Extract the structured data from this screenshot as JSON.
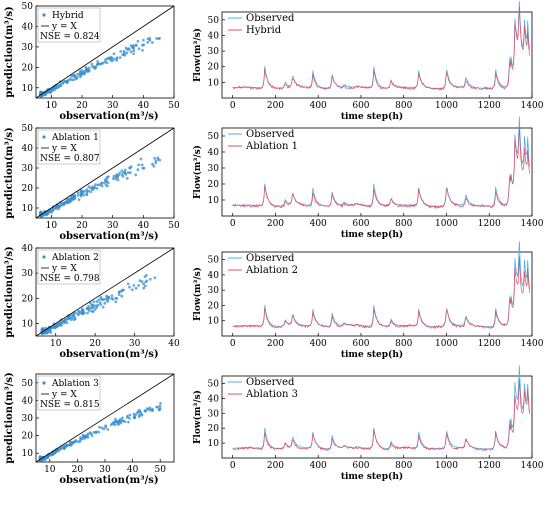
{
  "colors": {
    "scatter": "#3a8fd0",
    "observed": "#4fb3e8",
    "model": "#e0506a",
    "diagonal": "#000000"
  },
  "chart_data": [
    {
      "type": "scatter",
      "panel": "scatter-1",
      "legend": [
        "Hybrid",
        "y = X"
      ],
      "nse_label": "NSE = 0.824",
      "xlabel": "observation(m³/s)",
      "ylabel": "prediction(m³/s)",
      "xlim": [
        5,
        50
      ],
      "ylim": [
        5,
        50
      ],
      "xticks": [
        "10",
        "20",
        "30",
        "40",
        "50"
      ],
      "yticks": [
        "10",
        "20",
        "30",
        "40",
        "50"
      ],
      "reference_line": "y = X",
      "nse": 0.824,
      "spread": 0.22
    },
    {
      "type": "line",
      "panel": "flow-1",
      "series": [
        {
          "name": "Observed"
        },
        {
          "name": "Hybrid"
        }
      ],
      "xlabel": "time step(h)",
      "ylabel": "Flow(m³/s)",
      "xlim": [
        -50,
        1400
      ],
      "ylim": [
        0,
        55
      ],
      "xticks": [
        "0",
        "200",
        "400",
        "600",
        "800",
        "1000",
        "1200",
        "1400"
      ],
      "yticks": [
        "10",
        "20",
        "30",
        "40",
        "50"
      ]
    },
    {
      "type": "scatter",
      "panel": "scatter-2",
      "legend": [
        "Ablation 1",
        "y = X"
      ],
      "nse_label": "NSE = 0.807",
      "xlabel": "observation(m³/s)",
      "ylabel": "prediction(m³/s)",
      "xlim": [
        5,
        50
      ],
      "ylim": [
        5,
        50
      ],
      "xticks": [
        "10",
        "20",
        "30",
        "40",
        "50"
      ],
      "yticks": [
        "10",
        "20",
        "30",
        "40",
        "50"
      ],
      "reference_line": "y = X",
      "nse": 0.807,
      "spread": 0.25
    },
    {
      "type": "line",
      "panel": "flow-2",
      "series": [
        {
          "name": "Observed"
        },
        {
          "name": "Ablation 1"
        }
      ],
      "xlabel": "time step(h)",
      "ylabel": "Flow(m³/s)",
      "xlim": [
        -50,
        1400
      ],
      "ylim": [
        0,
        55
      ],
      "xticks": [
        "0",
        "200",
        "400",
        "600",
        "800",
        "1000",
        "1200",
        "1400"
      ],
      "yticks": [
        "10",
        "20",
        "30",
        "40",
        "50"
      ]
    },
    {
      "type": "scatter",
      "panel": "scatter-3",
      "legend": [
        "Ablation 2",
        "y = X"
      ],
      "nse_label": "NSE = 0.798",
      "xlabel": "observation(m³/s)",
      "ylabel": "prediction(m³/s)",
      "xlim": [
        5,
        40
      ],
      "ylim": [
        5,
        40
      ],
      "xticks": [
        "10",
        "20",
        "30",
        "40"
      ],
      "yticks": [
        "10",
        "20",
        "30",
        "40"
      ],
      "reference_line": "y = X",
      "nse": 0.798,
      "spread": 0.28
    },
    {
      "type": "line",
      "panel": "flow-3",
      "series": [
        {
          "name": "Observed"
        },
        {
          "name": "Ablation 2"
        }
      ],
      "xlabel": "time step(h)",
      "ylabel": "Flow(m³/s)",
      "xlim": [
        -50,
        1400
      ],
      "ylim": [
        0,
        55
      ],
      "xticks": [
        "0",
        "200",
        "400",
        "600",
        "800",
        "1000",
        "1200",
        "1400"
      ],
      "yticks": [
        "10",
        "20",
        "30",
        "40",
        "50"
      ]
    },
    {
      "type": "scatter",
      "panel": "scatter-4",
      "legend": [
        "Ablation 3",
        "y = X"
      ],
      "nse_label": "NSE = 0.815",
      "xlabel": "observation(m³/s)",
      "ylabel": "prediction(m³/s)",
      "xlim": [
        5,
        55
      ],
      "ylim": [
        5,
        55
      ],
      "xticks": [
        "10",
        "20",
        "30",
        "40",
        "50"
      ],
      "yticks": [
        "10",
        "20",
        "30",
        "40",
        "50"
      ],
      "reference_line": "y = X",
      "nse": 0.815,
      "spread": 0.22
    },
    {
      "type": "line",
      "panel": "flow-4",
      "series": [
        {
          "name": "Observed"
        },
        {
          "name": "Ablation 3"
        }
      ],
      "xlabel": "time step(h)",
      "ylabel": "Flow(m³/s)",
      "xlim": [
        -50,
        1400
      ],
      "ylim": [
        0,
        55
      ],
      "xticks": [
        "0",
        "200",
        "400",
        "600",
        "800",
        "1000",
        "1200",
        "1400"
      ],
      "yticks": [
        "10",
        "20",
        "30",
        "40",
        "50"
      ]
    }
  ]
}
